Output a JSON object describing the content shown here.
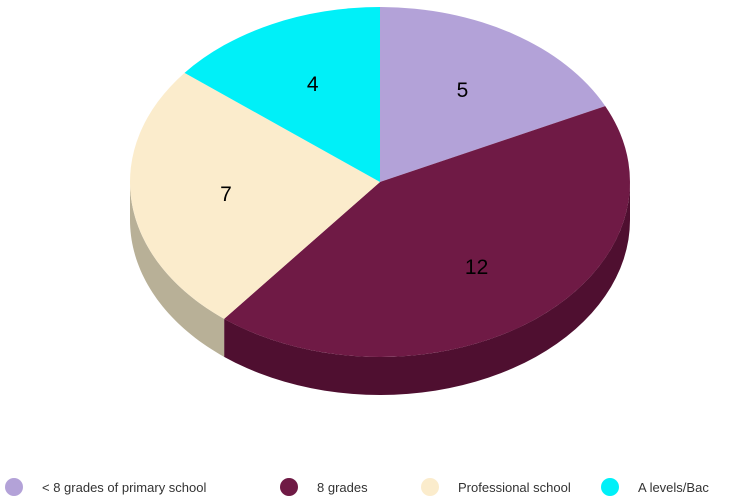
{
  "chart_data": {
    "type": "pie",
    "style": "3d",
    "title": "",
    "categories": [
      "< 8 grades of primary school",
      "8 grades",
      "Professional school",
      "A levels/Bac"
    ],
    "values": [
      5,
      12,
      7,
      4
    ],
    "data_labels": [
      "5",
      "12",
      "7",
      "4"
    ],
    "colors": [
      "#b3a2d8",
      "#6f1a45",
      "#fbeccc",
      "#00f0f8"
    ],
    "side_colors": [
      "#8e80b0",
      "#4f0f30",
      "#b8b097",
      "#00b8bf"
    ],
    "start_angle_deg": 0,
    "direction": "clockwise",
    "legend": {
      "position": "bottom",
      "entries": [
        "< 8 grades of primary school",
        "8 grades",
        "Professional school",
        "A levels/Bac"
      ]
    }
  }
}
